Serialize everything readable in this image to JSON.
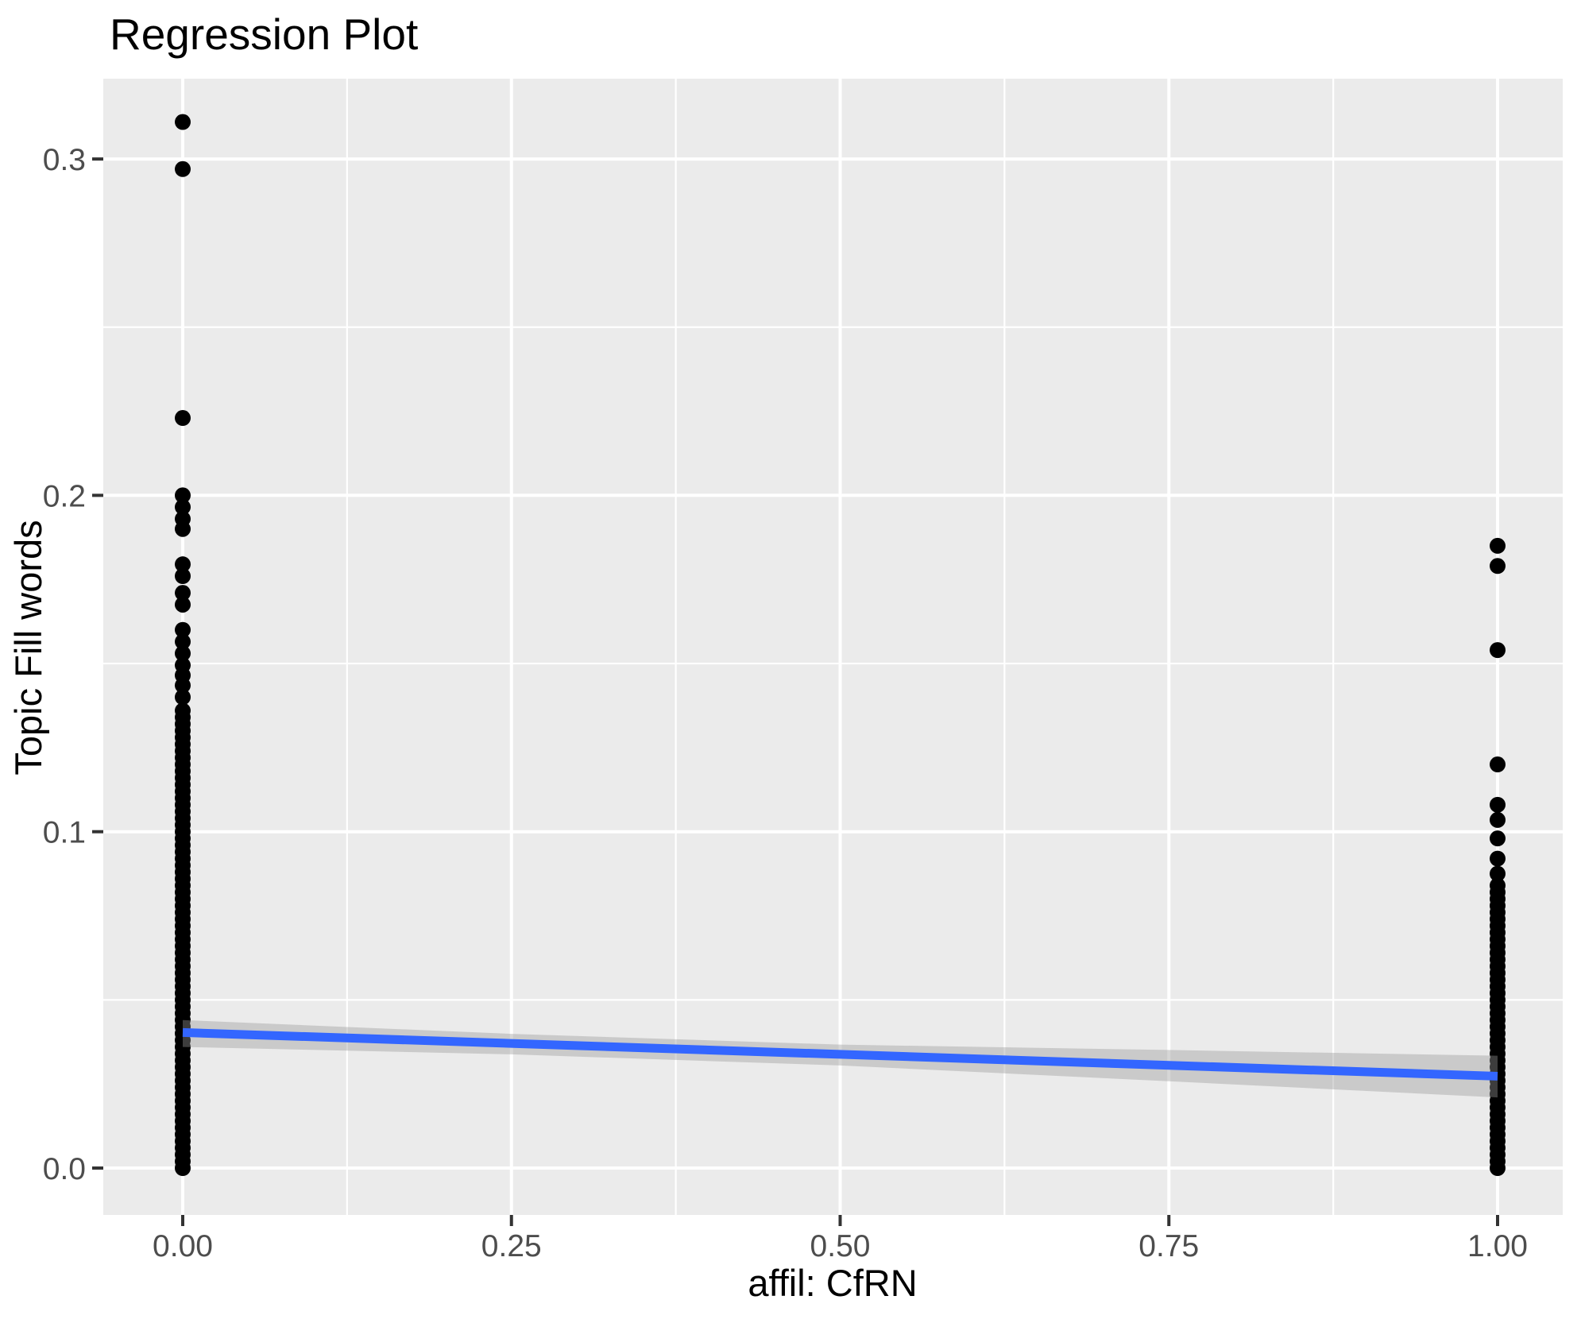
{
  "title": "Regression Plot",
  "axes": {
    "x": {
      "label": "affil: CfRN",
      "tick_labels": [
        "0.00",
        "0.25",
        "0.50",
        "0.75",
        "1.00"
      ],
      "tick_values": [
        0,
        0.25,
        0.5,
        0.75,
        1
      ],
      "minor_grid_values": [
        0.125,
        0.375,
        0.625,
        0.875
      ]
    },
    "y": {
      "label": "Topic Fill words",
      "tick_labels": [
        "0.0",
        "0.1",
        "0.2",
        "0.3"
      ],
      "tick_values": [
        0,
        0.1,
        0.2,
        0.3
      ],
      "minor_grid_values": [
        0.05,
        0.15,
        0.25
      ]
    }
  },
  "chart_data": {
    "type": "scatter",
    "title": "Regression Plot",
    "xlabel": "affil: CfRN",
    "ylabel": "Topic Fill words",
    "xlim": [
      -0.062,
      1.05
    ],
    "ylim": [
      -0.014,
      0.324
    ],
    "grid": true,
    "legend": false,
    "series": [
      {
        "name": "affil_CfRN_0",
        "x": 0,
        "dense_range": [
          0,
          0.137
        ],
        "dense_step": 0.002,
        "outliers": [
          0.14,
          0.1435,
          0.1465,
          0.1495,
          0.153,
          0.1565,
          0.16,
          0.1675,
          0.171,
          0.176,
          0.1795,
          0.19,
          0.193,
          0.1965,
          0.2,
          0.223,
          0.297,
          0.311
        ]
      },
      {
        "name": "affil_CfRN_1",
        "x": 1,
        "dense_range": [
          0,
          0.085
        ],
        "dense_step": 0.002,
        "outliers": [
          0.0875,
          0.092,
          0.098,
          0.1035,
          0.108,
          0.12,
          0.154,
          0.179,
          0.185
        ]
      }
    ],
    "regression_line": {
      "x": [
        0,
        1
      ],
      "y": [
        0.0403,
        0.0273
      ]
    },
    "confidence_band": {
      "x": [
        0,
        0.25,
        0.5,
        0.75,
        1
      ],
      "upper": [
        0.044,
        0.0399,
        0.0367,
        0.0351,
        0.0334
      ],
      "lower": [
        0.036,
        0.0338,
        0.0305,
        0.0258,
        0.021
      ]
    }
  },
  "style": {
    "panel_bg": "#EBEBEB",
    "grid_color": "#FFFFFF",
    "point_color": "#000000",
    "line_color": "#3366FF",
    "band_color": "#999999",
    "band_opacity": 0.4,
    "tick_mark_color": "#333333",
    "tick_label_color": "#4D4D4D",
    "text_color": "#000000"
  }
}
